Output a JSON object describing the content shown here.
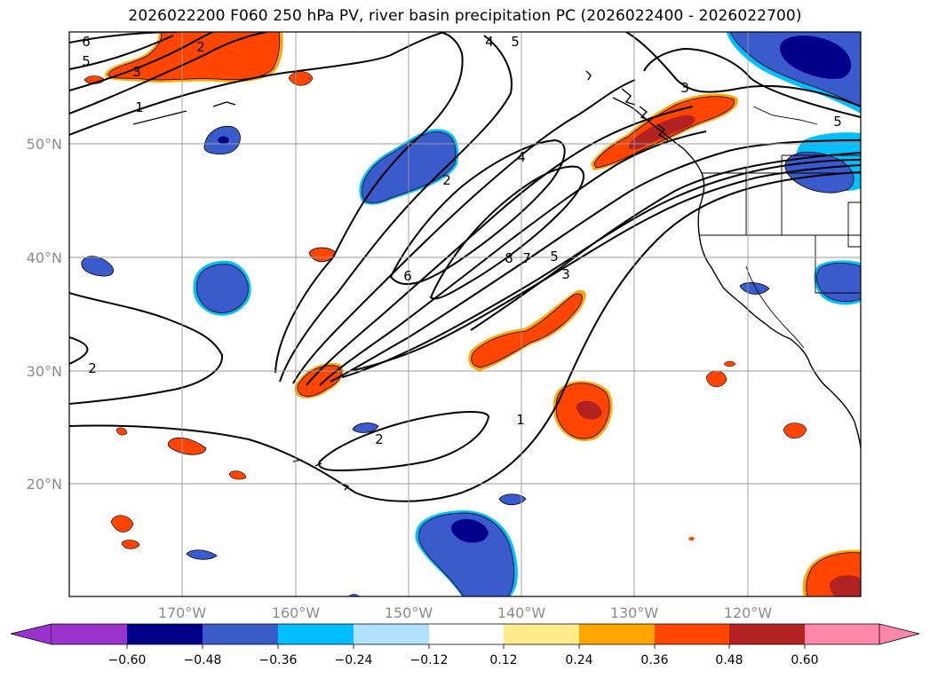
{
  "title": "2026022200 F060 250 hPa PV, river basin precipitation PC (2026022400 - 2026022700)",
  "map": {
    "lat_labels": [
      "50°N",
      "40°N",
      "30°N",
      "20°N"
    ],
    "lon_labels": [
      "170°W",
      "160°W",
      "150°W",
      "140°W",
      "130°W",
      "120°W"
    ],
    "pv_contour_labels": [
      "6",
      "5",
      "4",
      "5",
      "2",
      "3",
      "1",
      "3",
      "5",
      "4",
      "2",
      "6",
      "8",
      "7",
      "5",
      "3",
      "2",
      "2",
      "1"
    ]
  },
  "colorbar": {
    "ticks": [
      "−0.60",
      "−0.48",
      "−0.36",
      "−0.24",
      "−0.12",
      "0.12",
      "0.24",
      "0.36",
      "0.48",
      "0.60"
    ],
    "colors": [
      "#9933cc",
      "#00008b",
      "#3a5bcc",
      "#00bfff",
      "#b0e2ff",
      "#ffffff",
      "#ffec8b",
      "#ffa500",
      "#ff4500",
      "#b22222",
      "#ff88aa"
    ]
  }
}
